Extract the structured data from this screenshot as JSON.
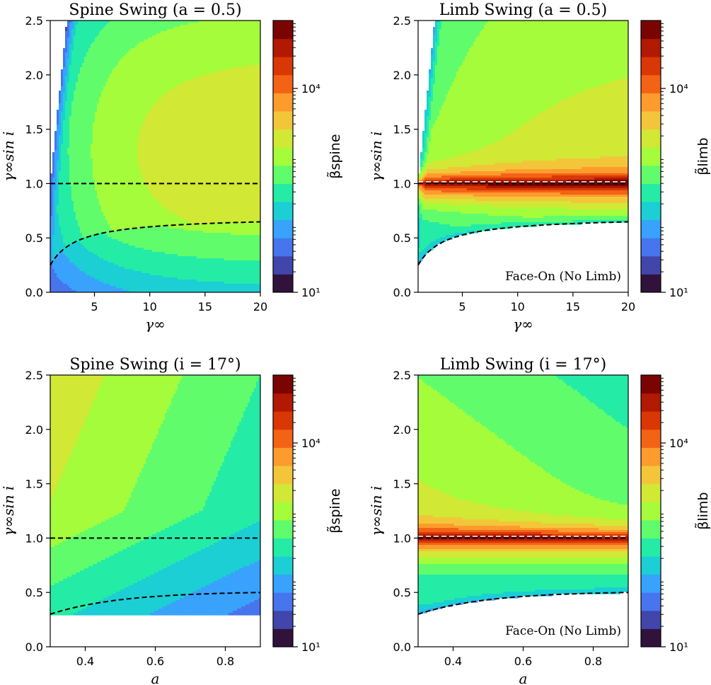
{
  "colormap": [
    "#30123b",
    "#4146ab",
    "#4675ed",
    "#39a2fc",
    "#1bcfd4",
    "#24eca6",
    "#61fc6c",
    "#a4fc3b",
    "#d1e834",
    "#f3c63a",
    "#fe9b2d",
    "#f36315",
    "#d93806",
    "#b11901",
    "#7a0402"
  ],
  "chart_data": [
    {
      "id": "p1",
      "type": "heatmap",
      "title": "Spine Swing (a = 0.5)",
      "xlabel": "γ∞",
      "ylabel": "γ∞sin i",
      "xlim": [
        1,
        20
      ],
      "ylim": [
        0,
        2.5
      ],
      "xticks": [
        5,
        10,
        15,
        20
      ],
      "xtick_labels": [
        "5",
        "10",
        "15",
        "20"
      ],
      "yticks": [
        0,
        0.5,
        1.0,
        1.5,
        2.0,
        2.5
      ],
      "ytick_labels": [
        "0.0",
        "0.5",
        "1.0",
        "1.5",
        "2.0",
        "2.5"
      ],
      "colorbar_label": "β̃spine",
      "colorbar_ticks": [
        "10¹",
        "10⁴"
      ],
      "colorbar_range_log10": [
        1,
        5
      ],
      "field": "spine_gamma",
      "dashed_lines": [
        "y = 1.0",
        "face-on boundary"
      ],
      "annotation": ""
    },
    {
      "id": "p2",
      "type": "heatmap",
      "title": "Limb Swing (a = 0.5)",
      "xlabel": "γ∞",
      "ylabel": "γ∞sin i",
      "xlim": [
        1,
        20
      ],
      "ylim": [
        0,
        2.5
      ],
      "xticks": [
        5,
        10,
        15,
        20
      ],
      "xtick_labels": [
        "5",
        "10",
        "15",
        "20"
      ],
      "yticks": [
        0,
        0.5,
        1.0,
        1.5,
        2.0,
        2.5
      ],
      "ytick_labels": [
        "0.0",
        "0.5",
        "1.0",
        "1.5",
        "2.0",
        "2.5"
      ],
      "colorbar_label": "β̃limb",
      "colorbar_ticks": [
        "10¹",
        "10⁴"
      ],
      "colorbar_range_log10": [
        1,
        5
      ],
      "field": "limb_gamma",
      "dashed_lines": [
        "y = 1.0",
        "face-on boundary"
      ],
      "annotation": "Face-On (No Limb)"
    },
    {
      "id": "p3",
      "type": "heatmap",
      "title": "Spine Swing (i = 17°)",
      "xlabel": "a",
      "ylabel": "γ∞sin i",
      "xlim": [
        0.3,
        0.9
      ],
      "ylim": [
        0,
        2.5
      ],
      "xticks": [
        0.4,
        0.6,
        0.8
      ],
      "xtick_labels": [
        "0.4",
        "0.6",
        "0.8"
      ],
      "yticks": [
        0,
        0.5,
        1.0,
        1.5,
        2.0,
        2.5
      ],
      "ytick_labels": [
        "0.0",
        "0.5",
        "1.0",
        "1.5",
        "2.0",
        "2.5"
      ],
      "colorbar_label": "β̃spine",
      "colorbar_ticks": [
        "10¹",
        "10⁴"
      ],
      "colorbar_range_log10": [
        1,
        5
      ],
      "field": "spine_a",
      "dashed_lines": [
        "y = 1.0",
        "face-on boundary"
      ],
      "annotation": ""
    },
    {
      "id": "p4",
      "type": "heatmap",
      "title": "Limb Swing (i = 17°)",
      "xlabel": "a",
      "ylabel": "γ∞sin i",
      "xlim": [
        0.3,
        0.9
      ],
      "ylim": [
        0,
        2.5
      ],
      "xticks": [
        0.4,
        0.6,
        0.8
      ],
      "xtick_labels": [
        "0.4",
        "0.6",
        "0.8"
      ],
      "yticks": [
        0,
        0.5,
        1.0,
        1.5,
        2.0,
        2.5
      ],
      "ytick_labels": [
        "0.0",
        "0.5",
        "1.0",
        "1.5",
        "2.0",
        "2.5"
      ],
      "colorbar_label": "β̃limb",
      "colorbar_ticks": [
        "10¹",
        "10⁴"
      ],
      "colorbar_range_log10": [
        1,
        5
      ],
      "field": "limb_a",
      "dashed_lines": [
        "y = 1.0",
        "face-on boundary"
      ],
      "annotation": "Face-On (No Limb)"
    }
  ]
}
